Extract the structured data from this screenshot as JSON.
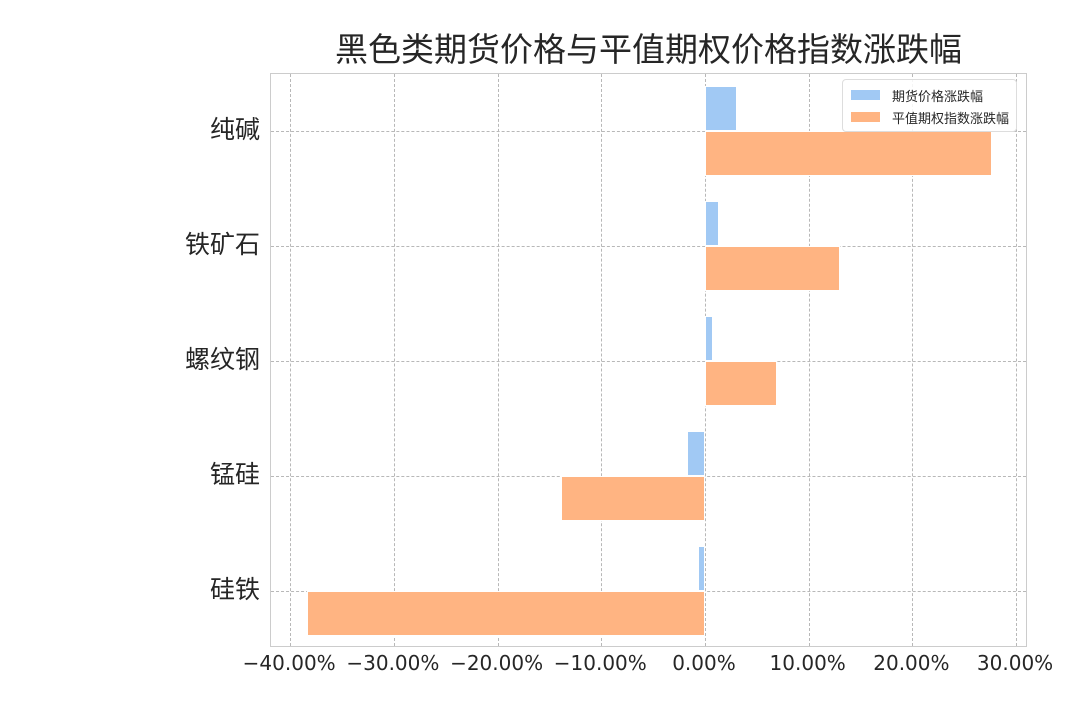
{
  "chart_data": {
    "type": "bar",
    "orientation": "horizontal",
    "title": "黑色类期货价格与平值期权价格指数涨跌幅",
    "xlabel": "",
    "ylabel": "",
    "categories": [
      "纯碱",
      "铁矿石",
      "螺纹钢",
      "锰硅",
      "硅铁"
    ],
    "series": [
      {
        "name": "期货价格涨跌幅",
        "color": "#a1c9f4",
        "values": [
          3.1,
          1.4,
          0.8,
          -1.7,
          -0.7
        ]
      },
      {
        "name": "平值期权指数涨跌幅",
        "color": "#ffb482",
        "values": [
          27.7,
          13.0,
          6.9,
          -13.9,
          -38.4
        ]
      }
    ],
    "xlim": [
      -41.85,
      31.15
    ],
    "xticks": [
      -40,
      -30,
      -20,
      -10,
      0,
      10,
      20,
      30
    ],
    "xtick_labels": [
      "−40.00%",
      "−30.00%",
      "−20.00%",
      "−10.00%",
      "0.00%",
      "10.00%",
      "20.00%",
      "30.00%"
    ],
    "value_format": "percent",
    "grid": true,
    "legend_position": "upper right"
  },
  "labels": {
    "title": "黑色类期货价格与平值期权价格指数涨跌幅",
    "legend_futures": "期货价格涨跌幅",
    "legend_options": "平值期权指数涨跌幅"
  }
}
